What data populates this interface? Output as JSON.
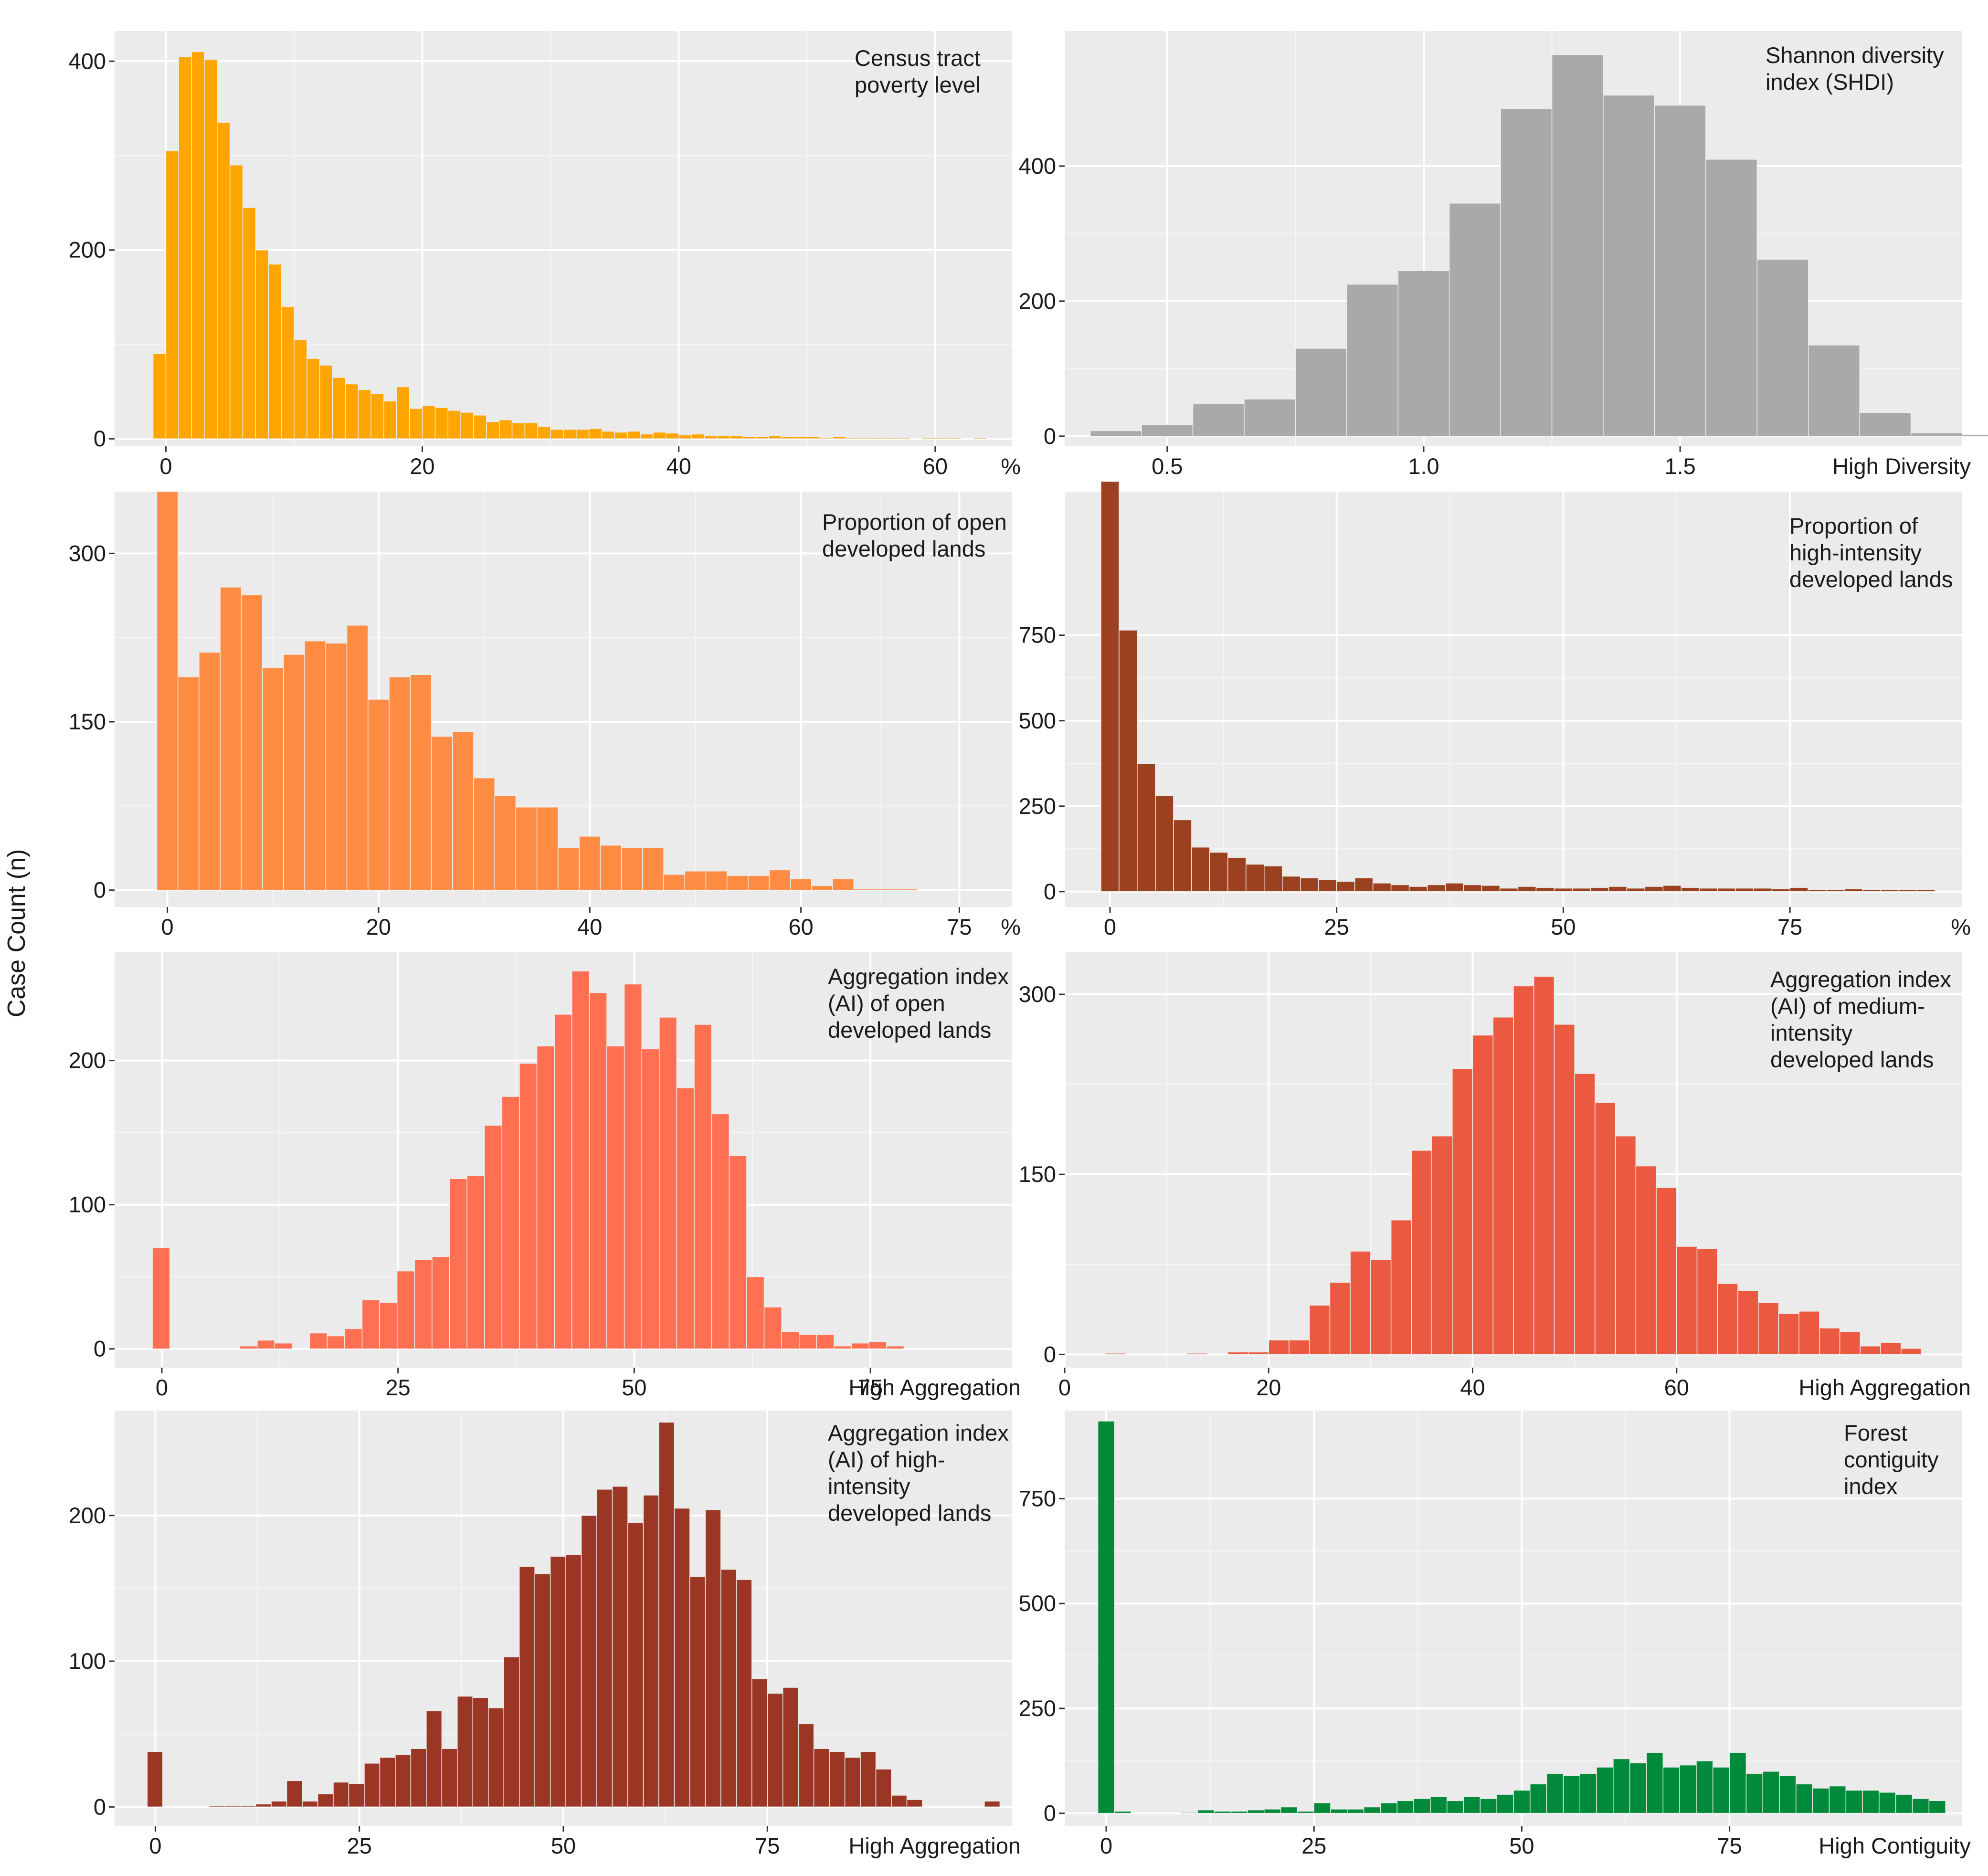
{
  "figure": {
    "ylabel": "Case Count (n)"
  },
  "chart_data": [
    {
      "type": "bar",
      "title": "Census tract poverty level",
      "title_lines": [
        "Census tract",
        "poverty level"
      ],
      "xlabel": "%",
      "ylabel": "Case Count (n)",
      "color": "#FFA500",
      "x_start": -1,
      "bin_width": 1,
      "xlim": [
        -4,
        66
      ],
      "ylim": [
        -8,
        432
      ],
      "xticks": [
        0,
        20,
        40,
        60
      ],
      "xtick_labels": [
        "0",
        "20",
        "40",
        "60"
      ],
      "yticks": [
        0,
        200,
        400
      ],
      "ytick_labels": [
        "0",
        "200",
        "400"
      ],
      "values": [
        90,
        305,
        405,
        410,
        402,
        335,
        290,
        245,
        200,
        185,
        140,
        105,
        85,
        78,
        65,
        58,
        52,
        48,
        40,
        55,
        32,
        35,
        33,
        30,
        28,
        25,
        18,
        20,
        17,
        17,
        13,
        10,
        10,
        10,
        11,
        8,
        7,
        8,
        5,
        7,
        6,
        4,
        5,
        3,
        3,
        3,
        2,
        2,
        3,
        2,
        2,
        2,
        1,
        2,
        1,
        1,
        1,
        1,
        1,
        0,
        1,
        1,
        1,
        0,
        1
      ]
    },
    {
      "type": "bar",
      "title": "Shannon diversity index (SHDI)",
      "title_lines": [
        "Shannon diversity",
        "index (SHDI)"
      ],
      "xlabel": "High Diversity",
      "ylabel": "Case Count (n)",
      "color": "#A9A9A9",
      "x_start": 0.35,
      "bin_width": 0.1,
      "xlim": [
        0.3,
        2.05
      ],
      "ylim": [
        -15,
        600
      ],
      "xticks": [
        0.5,
        1.0,
        1.5
      ],
      "xtick_labels": [
        "0.5",
        "1.0",
        "1.5"
      ],
      "yticks": [
        0,
        200,
        400
      ],
      "ytick_labels": [
        "0",
        "200",
        "400"
      ],
      "values": [
        8,
        17,
        48,
        55,
        130,
        225,
        245,
        345,
        485,
        565,
        505,
        490,
        410,
        262,
        135,
        35,
        5,
        2
      ]
    },
    {
      "type": "bar",
      "title": "Proportion of open developed lands",
      "title_lines": [
        "Proportion of open",
        "developed lands"
      ],
      "xlabel": "%",
      "ylabel": "Case Count (n)",
      "color": "#FF8C42",
      "x_start": -1,
      "bin_width": 2,
      "xlim": [
        -5,
        80
      ],
      "ylim": [
        -15,
        355
      ],
      "xticks": [
        0,
        20,
        40,
        60,
        75
      ],
      "xtick_labels": [
        "0",
        "20",
        "40",
        "60",
        "75"
      ],
      "yticks": [
        0,
        150,
        300
      ],
      "ytick_labels": [
        "0",
        "150",
        "300"
      ],
      "values": [
        355,
        190,
        212,
        270,
        263,
        198,
        210,
        222,
        220,
        236,
        170,
        190,
        192,
        137,
        141,
        100,
        84,
        74,
        74,
        38,
        48,
        40,
        38,
        38,
        14,
        17,
        17,
        13,
        13,
        18,
        10,
        4,
        10,
        1,
        1,
        1
      ]
    },
    {
      "type": "bar",
      "title": "Proportion of high-intensity developed lands",
      "title_lines": [
        "Proportion of",
        "high-intensity",
        "developed lands"
      ],
      "xlabel": "%",
      "ylabel": "Case Count (n)",
      "color": "#9C4120",
      "x_start": -1,
      "bin_width": 2,
      "xlim": [
        -5,
        94
      ],
      "ylim": [
        -45,
        1170
      ],
      "xticks": [
        0,
        25,
        50,
        75
      ],
      "xtick_labels": [
        "0",
        "25",
        "50",
        "75"
      ],
      "yticks": [
        0,
        250,
        500,
        750
      ],
      "ytick_labels": [
        "0",
        "250",
        "500",
        "750"
      ],
      "values": [
        1200,
        765,
        375,
        280,
        210,
        130,
        115,
        100,
        80,
        75,
        45,
        40,
        35,
        30,
        40,
        25,
        20,
        15,
        20,
        25,
        20,
        18,
        10,
        15,
        12,
        10,
        10,
        12,
        15,
        10,
        15,
        18,
        12,
        10,
        10,
        10,
        10,
        8,
        12,
        5,
        5,
        8,
        6,
        5,
        5,
        5
      ]
    },
    {
      "type": "bar",
      "title": "Aggregation index (AI) of open developed lands",
      "title_lines": [
        "Aggregation index",
        "(AI) of open",
        "developed lands"
      ],
      "xlabel": "High Aggregation",
      "ylabel": "Case Count (n)",
      "color": "#FF7052",
      "x_start": -1,
      "bin_width": 1.85,
      "xlim": [
        -5,
        90
      ],
      "ylim": [
        -13,
        275
      ],
      "xticks": [
        0,
        25,
        50,
        75
      ],
      "xtick_labels": [
        "0",
        "25",
        "50",
        "75"
      ],
      "yticks": [
        0,
        100,
        200
      ],
      "ytick_labels": [
        "0",
        "100",
        "200"
      ],
      "values": [
        70,
        0,
        0,
        0,
        0,
        2,
        6,
        4,
        0,
        11,
        9,
        14,
        34,
        32,
        54,
        62,
        64,
        118,
        120,
        155,
        175,
        198,
        210,
        232,
        262,
        247,
        210,
        253,
        208,
        230,
        181,
        225,
        163,
        134,
        50,
        29,
        12,
        10,
        10,
        2,
        4,
        5,
        2
      ]
    },
    {
      "type": "bar",
      "title": "Aggregation index (AI) of medium-intensity developed lands",
      "title_lines": [
        "Aggregation index",
        "(AI) of medium-",
        "intensity",
        "developed lands"
      ],
      "xlabel": "High Aggregation",
      "ylabel": "Case Count (n)",
      "color": "#EB5A40",
      "x_start": 0,
      "bin_width": 2,
      "xlim": [
        0,
        88
      ],
      "ylim": [
        -11,
        335
      ],
      "xticks": [
        0,
        20,
        40,
        60
      ],
      "xtick_labels": [
        "0",
        "20",
        "40",
        "60"
      ],
      "yticks": [
        0,
        150,
        300
      ],
      "ytick_labels": [
        "0",
        "150",
        "300"
      ],
      "values": [
        0,
        0,
        1,
        0,
        0,
        0,
        1,
        0,
        2,
        2,
        12,
        12,
        41,
        60,
        86,
        79,
        112,
        170,
        182,
        238,
        266,
        281,
        307,
        315,
        275,
        234,
        210,
        182,
        157,
        139,
        90,
        88,
        59,
        53,
        43,
        34,
        36,
        22,
        19,
        7,
        10,
        5
      ]
    },
    {
      "type": "bar",
      "title": "Aggregation index (AI) of high-intensity developed lands",
      "title_lines": [
        "Aggregation index",
        "(AI) of high-",
        "intensity",
        "developed lands"
      ],
      "xlabel": "High Aggregation",
      "ylabel": "Case Count (n)",
      "color": "#9B3524",
      "x_start": -1,
      "bin_width": 1.9,
      "xlim": [
        -5,
        105
      ],
      "ylim": [
        -13,
        272
      ],
      "xticks": [
        0,
        25,
        50,
        75
      ],
      "xtick_labels": [
        "0",
        "25",
        "50",
        "75"
      ],
      "yticks": [
        0,
        100,
        200
      ],
      "ytick_labels": [
        "0",
        "100",
        "200"
      ],
      "values": [
        38,
        0,
        0,
        0,
        1,
        1,
        1,
        2,
        4,
        18,
        4,
        9,
        17,
        16,
        30,
        34,
        36,
        40,
        66,
        40,
        76,
        75,
        68,
        103,
        165,
        160,
        172,
        173,
        200,
        218,
        220,
        195,
        214,
        264,
        205,
        158,
        204,
        163,
        156,
        88,
        78,
        82,
        57,
        40,
        38,
        34,
        38,
        26,
        8,
        5,
        0,
        0,
        0,
        0,
        4
      ]
    },
    {
      "type": "bar",
      "title": "Forest contiguity index",
      "title_lines": [
        "Forest",
        "contiguity",
        "index"
      ],
      "xlabel": "High Contiguity",
      "ylabel": "Case Count (n)",
      "color": "#008A3A",
      "x_start": -1,
      "bin_width": 2,
      "xlim": [
        -5,
        103
      ],
      "ylim": [
        -30,
        960
      ],
      "xticks": [
        0,
        25,
        50,
        75
      ],
      "xtick_labels": [
        "0",
        "25",
        "50",
        "75"
      ],
      "yticks": [
        0,
        250,
        500,
        750
      ],
      "ytick_labels": [
        "0",
        "250",
        "500",
        "750"
      ],
      "values": [
        935,
        5,
        0,
        0,
        0,
        2,
        8,
        5,
        5,
        8,
        10,
        15,
        5,
        25,
        10,
        10,
        15,
        25,
        30,
        35,
        40,
        30,
        40,
        35,
        45,
        55,
        70,
        95,
        90,
        95,
        110,
        130,
        120,
        145,
        110,
        115,
        125,
        110,
        145,
        95,
        100,
        90,
        70,
        60,
        65,
        55,
        55,
        50,
        45,
        35,
        30
      ]
    }
  ]
}
